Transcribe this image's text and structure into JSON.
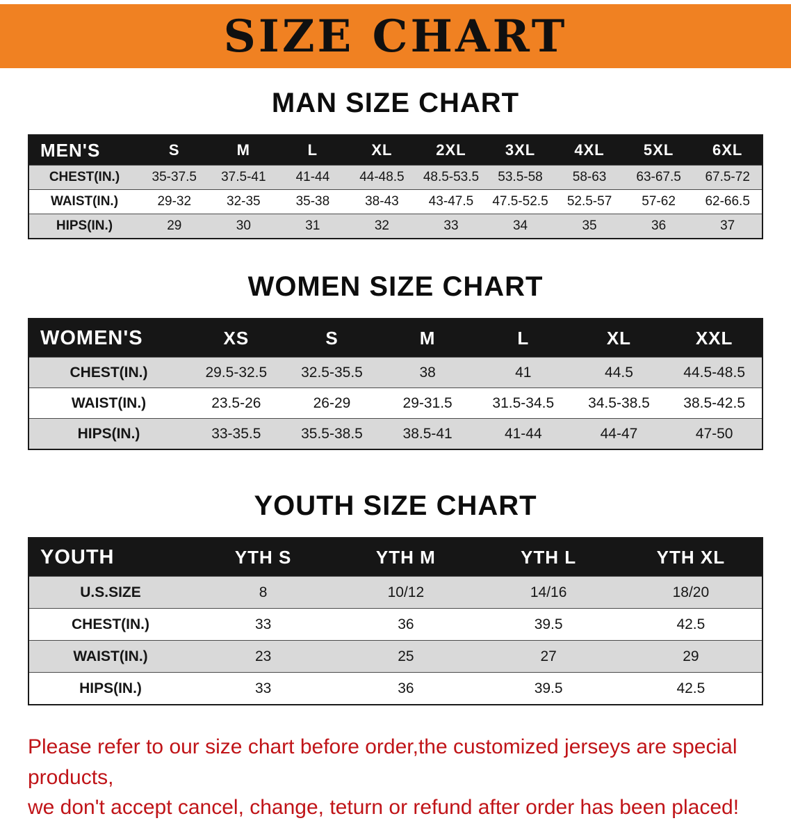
{
  "banner": {
    "title": "SIZE CHART"
  },
  "chart_data": [
    {
      "type": "table",
      "title": "MAN SIZE CHART",
      "columns": [
        "MEN'S",
        "S",
        "M",
        "L",
        "XL",
        "2XL",
        "3XL",
        "4XL",
        "5XL",
        "6XL"
      ],
      "rows": [
        {
          "label": "CHEST(IN.)",
          "values": [
            "35-37.5",
            "37.5-41",
            "41-44",
            "44-48.5",
            "48.5-53.5",
            "53.5-58",
            "58-63",
            "63-67.5",
            "67.5-72"
          ]
        },
        {
          "label": "WAIST(IN.)",
          "values": [
            "29-32",
            "32-35",
            "35-38",
            "38-43",
            "43-47.5",
            "47.5-52.5",
            "52.5-57",
            "57-62",
            "62-66.5"
          ]
        },
        {
          "label": "HIPS(IN.)",
          "values": [
            "29",
            "30",
            "31",
            "32",
            "33",
            "34",
            "35",
            "36",
            "37"
          ]
        }
      ]
    },
    {
      "type": "table",
      "title": "WOMEN SIZE CHART",
      "columns": [
        "WOMEN'S",
        "XS",
        "S",
        "M",
        "L",
        "XL",
        "XXL"
      ],
      "rows": [
        {
          "label": "CHEST(IN.)",
          "values": [
            "29.5-32.5",
            "32.5-35.5",
            "38",
            "41",
            "44.5",
            "44.5-48.5"
          ]
        },
        {
          "label": "WAIST(IN.)",
          "values": [
            "23.5-26",
            "26-29",
            "29-31.5",
            "31.5-34.5",
            "34.5-38.5",
            "38.5-42.5"
          ]
        },
        {
          "label": "HIPS(IN.)",
          "values": [
            "33-35.5",
            "35.5-38.5",
            "38.5-41",
            "41-44",
            "44-47",
            "47-50"
          ]
        }
      ]
    },
    {
      "type": "table",
      "title": "YOUTH SIZE CHART",
      "columns": [
        "YOUTH",
        "YTH S",
        "YTH M",
        "YTH L",
        "YTH XL"
      ],
      "rows": [
        {
          "label": "U.S.SIZE",
          "values": [
            "8",
            "10/12",
            "14/16",
            "18/20"
          ]
        },
        {
          "label": "CHEST(IN.)",
          "values": [
            "33",
            "36",
            "39.5",
            "42.5"
          ]
        },
        {
          "label": "WAIST(IN.)",
          "values": [
            "23",
            "25",
            "27",
            "29"
          ]
        },
        {
          "label": "HIPS(IN.)",
          "values": [
            "33",
            "36",
            "39.5",
            "42.5"
          ]
        }
      ]
    }
  ],
  "footer": {
    "line1": "Please refer to our size chart before order,the customized jerseys are special products,",
    "line2": "we don't accept cancel, change, teturn or refund after order has been placed!"
  },
  "colors": {
    "banner_orange": "#f08122",
    "header_black": "#161616",
    "row_gray": "#d9d9d9",
    "footer_red": "#c01418"
  }
}
